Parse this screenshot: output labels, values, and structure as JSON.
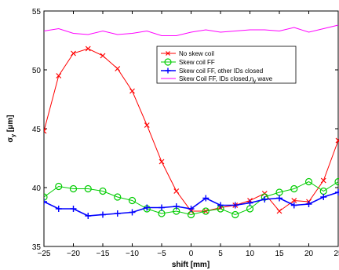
{
  "chart_data": {
    "type": "line",
    "title": "",
    "xlabel": "shift [mm]",
    "ylabel_main": "σ",
    "ylabel_sub": "y",
    "ylabel_unit": " [μm]",
    "xlim": [
      -25,
      25
    ],
    "ylim": [
      35,
      55
    ],
    "xticks": [
      -25,
      -20,
      -15,
      -10,
      -5,
      0,
      5,
      10,
      15,
      20,
      25
    ],
    "yticks": [
      35,
      40,
      45,
      50,
      55
    ],
    "grid": false,
    "legend_placement": "top-right",
    "x": [
      -25,
      -22.5,
      -20,
      -17.5,
      -15,
      -12.5,
      -10,
      -7.5,
      -5,
      -2.5,
      0,
      2.5,
      5,
      7.5,
      10,
      12.5,
      15,
      17.5,
      20,
      22.5,
      25
    ],
    "series": [
      {
        "name": "No skew coil",
        "color": "#ff0000",
        "marker": "x",
        "values": [
          44.8,
          49.5,
          51.4,
          51.8,
          51.2,
          50.1,
          48.2,
          45.3,
          42.2,
          39.7,
          38.0,
          38.0,
          38.3,
          38.5,
          38.9,
          39.5,
          38.0,
          38.9,
          38.8,
          40.6,
          44.0
        ]
      },
      {
        "name": "Skew coil FF",
        "color": "#00cc00",
        "marker": "o",
        "values": [
          39.2,
          40.1,
          39.9,
          39.9,
          39.7,
          39.2,
          38.9,
          38.2,
          37.8,
          38.0,
          37.7,
          38.0,
          38.2,
          37.7,
          38.2,
          39.2,
          39.6,
          39.9,
          40.5,
          39.7,
          40.5
        ]
      },
      {
        "name_prefix": "Skew coil FF, other IDs closed",
        "name": "Skew coil FF, other IDs closed",
        "color": "#0000ff",
        "marker": "+",
        "values": [
          38.8,
          38.2,
          38.2,
          37.6,
          37.7,
          37.8,
          37.9,
          38.3,
          38.3,
          38.4,
          38.2,
          39.1,
          38.5,
          38.5,
          38.7,
          39.0,
          39.1,
          38.5,
          38.6,
          39.2,
          39.6
        ]
      },
      {
        "name_prefix": "Skew Coil FF, IDs closed,",
        "name_symbol": "η",
        "name_sub": "y",
        "name_suffix": " wave",
        "color": "#ff00ff",
        "marker": "none",
        "values": [
          53.3,
          53.5,
          53.1,
          53.0,
          53.3,
          53.0,
          53.1,
          53.3,
          52.9,
          52.9,
          53.2,
          53.4,
          53.2,
          53.3,
          53.4,
          53.4,
          53.3,
          53.6,
          53.2,
          53.5,
          53.8
        ]
      }
    ]
  }
}
